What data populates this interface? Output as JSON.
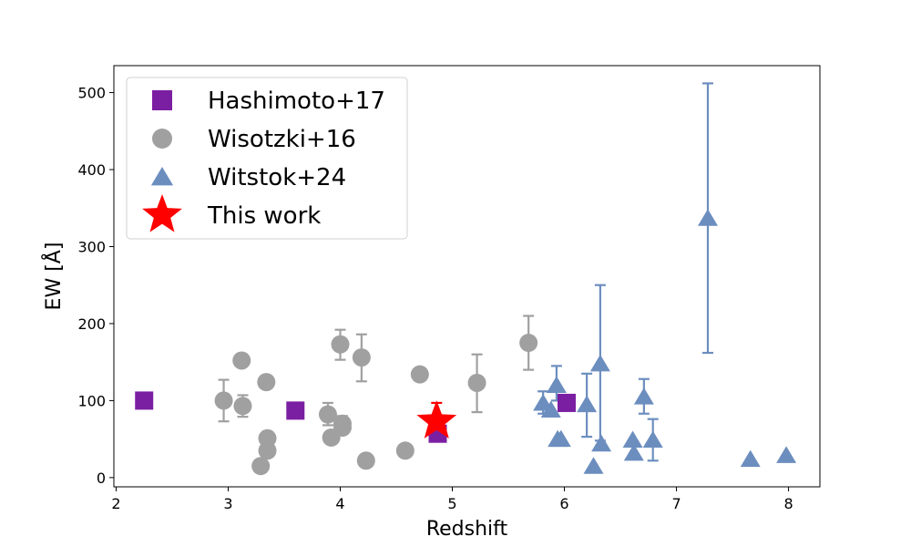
{
  "chart_data": {
    "type": "scatter",
    "xlabel": "Redshift",
    "ylabel": "EW [Å]",
    "xlim": [
      1.98,
      8.28
    ],
    "ylim": [
      -12,
      535
    ],
    "xticks": [
      2,
      3,
      4,
      5,
      6,
      7,
      8
    ],
    "yticks": [
      0,
      100,
      200,
      300,
      400,
      500
    ],
    "legend_position": "top-left",
    "series": [
      {
        "name": "Hashimoto+17",
        "marker": "square",
        "color": "#7b1fa2",
        "points": [
          {
            "x": 2.25,
            "y": 100
          },
          {
            "x": 3.6,
            "y": 87
          },
          {
            "x": 4.87,
            "y": 57
          },
          {
            "x": 6.02,
            "y": 97
          }
        ]
      },
      {
        "name": "Wisotzki+16",
        "marker": "circle",
        "color": "#a0a0a0",
        "points": [
          {
            "x": 2.96,
            "y": 100,
            "lo": 73,
            "hi": 127
          },
          {
            "x": 3.12,
            "y": 152
          },
          {
            "x": 3.13,
            "y": 93,
            "lo": 79,
            "hi": 107
          },
          {
            "x": 3.29,
            "y": 15
          },
          {
            "x": 3.34,
            "y": 124
          },
          {
            "x": 3.35,
            "y": 51
          },
          {
            "x": 3.35,
            "y": 35
          },
          {
            "x": 3.89,
            "y": 82,
            "lo": 68,
            "hi": 97
          },
          {
            "x": 3.92,
            "y": 52
          },
          {
            "x": 4.0,
            "y": 173,
            "lo": 153,
            "hi": 192
          },
          {
            "x": 4.02,
            "y": 70,
            "lo": 59,
            "hi": 80
          },
          {
            "x": 4.02,
            "y": 65
          },
          {
            "x": 4.19,
            "y": 156,
            "lo": 125,
            "hi": 186
          },
          {
            "x": 4.23,
            "y": 22
          },
          {
            "x": 4.58,
            "y": 35
          },
          {
            "x": 4.71,
            "y": 134
          },
          {
            "x": 5.22,
            "y": 123,
            "lo": 85,
            "hi": 160
          },
          {
            "x": 5.68,
            "y": 175,
            "lo": 140,
            "hi": 210
          }
        ]
      },
      {
        "name": "Witstok+24",
        "marker": "triangle",
        "color": "#6c8ebf",
        "points": [
          {
            "x": 5.81,
            "y": 97,
            "lo": 83,
            "hi": 112
          },
          {
            "x": 5.88,
            "y": 88
          },
          {
            "x": 5.93,
            "y": 120,
            "lo": 100,
            "hi": 145
          },
          {
            "x": 5.94,
            "y": 50
          },
          {
            "x": 5.97,
            "y": 50
          },
          {
            "x": 6.2,
            "y": 95,
            "lo": 53,
            "hi": 135
          },
          {
            "x": 6.26,
            "y": 15
          },
          {
            "x": 6.32,
            "y": 148,
            "lo": 48,
            "hi": 250
          },
          {
            "x": 6.33,
            "y": 44
          },
          {
            "x": 6.61,
            "y": 49
          },
          {
            "x": 6.62,
            "y": 32
          },
          {
            "x": 6.71,
            "y": 105,
            "lo": 83,
            "hi": 128
          },
          {
            "x": 6.79,
            "y": 49,
            "lo": 22,
            "hi": 76
          },
          {
            "x": 7.28,
            "y": 337,
            "lo": 162,
            "hi": 512
          },
          {
            "x": 7.66,
            "y": 24
          },
          {
            "x": 7.98,
            "y": 29
          }
        ]
      },
      {
        "name": "This work",
        "marker": "star",
        "color": "#ff0000",
        "points": [
          {
            "x": 4.86,
            "y": 73,
            "lo": 55,
            "hi": 97
          }
        ]
      }
    ]
  }
}
